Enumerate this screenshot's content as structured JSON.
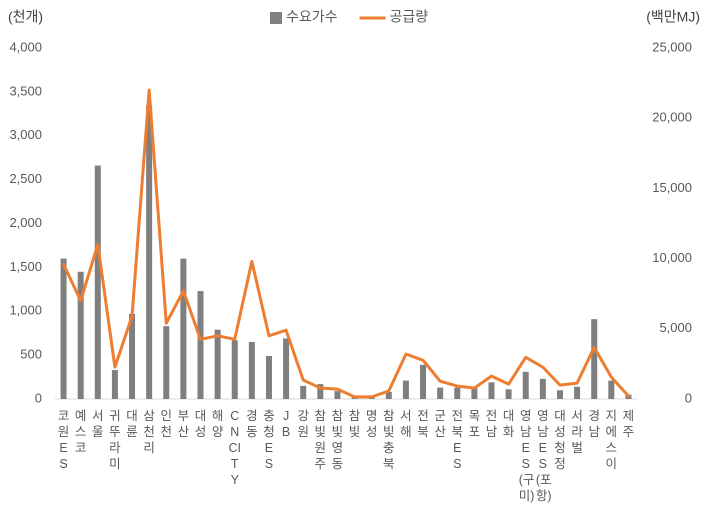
{
  "chart_data": {
    "type": "bar",
    "y_label": "(천개)",
    "y2_label": "(백만MJ)",
    "categories": [
      "코원ES",
      "예스코",
      "서울",
      "귀뚜라미",
      "대륜",
      "삼천리",
      "인천",
      "부산",
      "대성",
      "해양",
      "CNCITY",
      "경동",
      "충청ES",
      "JB",
      "강원",
      "참빛원주",
      "참빛영동",
      "참빛",
      "명성",
      "참빛충북",
      "서해",
      "전북",
      "군산",
      "전북ES",
      "목포",
      "전남",
      "대화",
      "영남ES(구미)",
      "영남ES(포항)",
      "대성청정",
      "서라벌",
      "경남",
      "지에스이",
      "제주"
    ],
    "series": [
      {
        "name": "수요가수",
        "color": "#7f7f7f",
        "type": "bar",
        "values": [
          1600,
          1450,
          2660,
          330,
          970,
          3350,
          830,
          1600,
          1230,
          790,
          670,
          650,
          490,
          690,
          150,
          170,
          90,
          20,
          20,
          80,
          210,
          390,
          130,
          130,
          140,
          190,
          110,
          310,
          230,
          100,
          140,
          910,
          210,
          50
        ]
      },
      {
        "name": "공급량",
        "color": "#ed7d31",
        "type": "line",
        "axis": "y2",
        "values": [
          9600,
          7000,
          11000,
          2270,
          5900,
          22000,
          5400,
          7700,
          4250,
          4500,
          4250,
          9800,
          4500,
          4900,
          1350,
          780,
          700,
          150,
          150,
          570,
          3200,
          2760,
          1270,
          920,
          780,
          1630,
          1060,
          2970,
          2270,
          990,
          1130,
          3680,
          1560,
          210
        ]
      }
    ],
    "ylim": [
      0,
      4000
    ],
    "yticks": [
      0,
      500,
      {
        "value": 1000,
        "label": "1,000"
      },
      {
        "value": 1500,
        "label": "1,500"
      },
      {
        "value": 2000,
        "label": "2,000"
      },
      {
        "value": 2500,
        "label": "2,500"
      },
      {
        "value": 3000,
        "label": "3,000"
      },
      {
        "value": 3500,
        "label": "3,500"
      },
      {
        "value": 4000,
        "label": "4,000"
      }
    ],
    "y2lim": [
      0,
      25000
    ],
    "y2ticks": [
      0,
      {
        "value": 5000,
        "label": "5,000"
      },
      {
        "value": 10000,
        "label": "10,000"
      },
      {
        "value": 15000,
        "label": "15,000"
      },
      {
        "value": 20000,
        "label": "20,000"
      },
      {
        "value": 25000,
        "label": "25,000"
      }
    ],
    "grid": false
  }
}
